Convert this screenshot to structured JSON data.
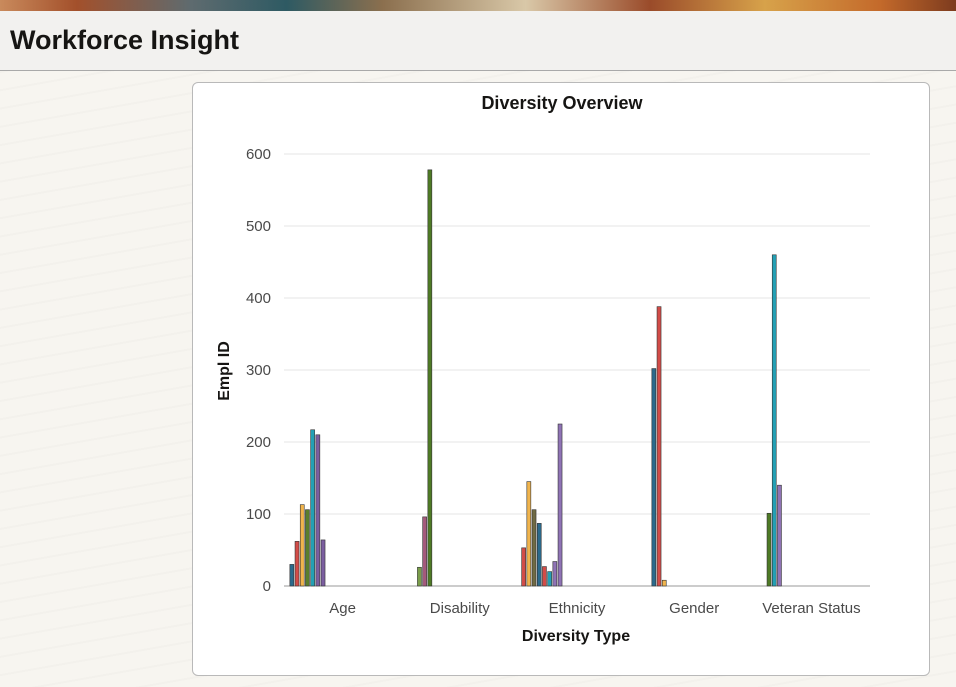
{
  "header": {
    "title": "Workforce Insight"
  },
  "chart_data": {
    "type": "bar",
    "title": "Diversity Overview",
    "xlabel": "Diversity Type",
    "ylabel": "Empl ID",
    "ylim": [
      0,
      600
    ],
    "yticks": [
      0,
      100,
      200,
      300,
      400,
      500,
      600
    ],
    "grid": true,
    "categories": [
      {
        "name": "Age",
        "bars": [
          {
            "value": 30,
            "color": "#2b6a8c"
          },
          {
            "value": 62,
            "color": "#d24c48"
          },
          {
            "value": 113,
            "color": "#f0b44d"
          },
          {
            "value": 106,
            "color": "#5a7f2c"
          },
          {
            "value": 217,
            "color": "#23a0b5"
          },
          {
            "value": 210,
            "color": "#7b5ea0"
          },
          {
            "value": 64,
            "color": "#7b5ea0"
          }
        ]
      },
      {
        "name": "Disability",
        "bars": [
          {
            "value": 26,
            "color": "#7a9d4a"
          },
          {
            "value": 96,
            "color": "#a45a7c"
          },
          {
            "value": 578,
            "color": "#4e7a25"
          }
        ]
      },
      {
        "name": "Ethnicity",
        "bars": [
          {
            "value": 53,
            "color": "#d24c48"
          },
          {
            "value": 145,
            "color": "#f0b44d"
          },
          {
            "value": 106,
            "color": "#6f6a44"
          },
          {
            "value": 87,
            "color": "#2b6a8c"
          },
          {
            "value": 27,
            "color": "#d24c48"
          },
          {
            "value": 20,
            "color": "#23a0b5"
          },
          {
            "value": 34,
            "color": "#8f73b5"
          },
          {
            "value": 225,
            "color": "#8f73b5"
          }
        ]
      },
      {
        "name": "Gender",
        "bars": [
          {
            "value": 302,
            "color": "#2b6a8c"
          },
          {
            "value": 388,
            "color": "#d24c48"
          },
          {
            "value": 8,
            "color": "#f0b44d"
          }
        ]
      },
      {
        "name": "Veteran Status",
        "bars": [
          {
            "value": 101,
            "color": "#4e7a25"
          },
          {
            "value": 460,
            "color": "#23a0b5"
          },
          {
            "value": 140,
            "color": "#8f73b5"
          }
        ]
      }
    ]
  }
}
